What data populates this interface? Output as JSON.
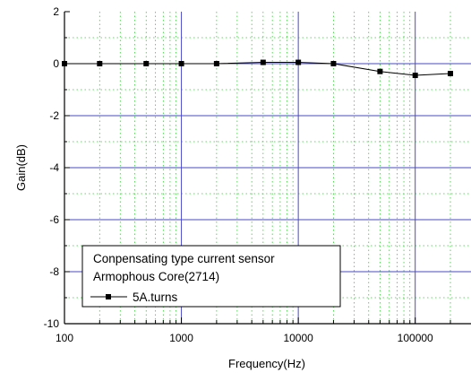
{
  "chart_data": {
    "type": "line",
    "xlabel": "Frequency(Hz)",
    "ylabel": "Gain(dB)",
    "xscale": "log",
    "xlim": [
      100,
      300000
    ],
    "ylim": [
      -10,
      2
    ],
    "x_ticks": [
      100,
      1000,
      10000,
      100000
    ],
    "x_tick_labels": [
      "100",
      "1000",
      "10000",
      "100000"
    ],
    "y_ticks": [
      2,
      0,
      -2,
      -4,
      -6,
      -8,
      -10
    ],
    "y_tick_labels": [
      "2",
      "0",
      "-2",
      "-4",
      "-6",
      "-8",
      "-10"
    ],
    "grid": true,
    "legend": {
      "position": "bottom-left",
      "lines": [
        "Conpensating type current sensor",
        "Armophous Core(2714)"
      ]
    },
    "series": [
      {
        "name": "5A.turns",
        "marker": "square",
        "x": [
          100,
          200,
          500,
          1000,
          2000,
          5000,
          10000,
          20000,
          50000,
          100000,
          200000
        ],
        "y": [
          0,
          0,
          0,
          0,
          0,
          0.05,
          0.05,
          0,
          -0.3,
          -0.45,
          -0.38
        ]
      }
    ],
    "colors": {
      "major_grid": "#4a4ac8",
      "minor_grid": "#33cc33",
      "line": "#000000",
      "frame": "#000000"
    }
  }
}
